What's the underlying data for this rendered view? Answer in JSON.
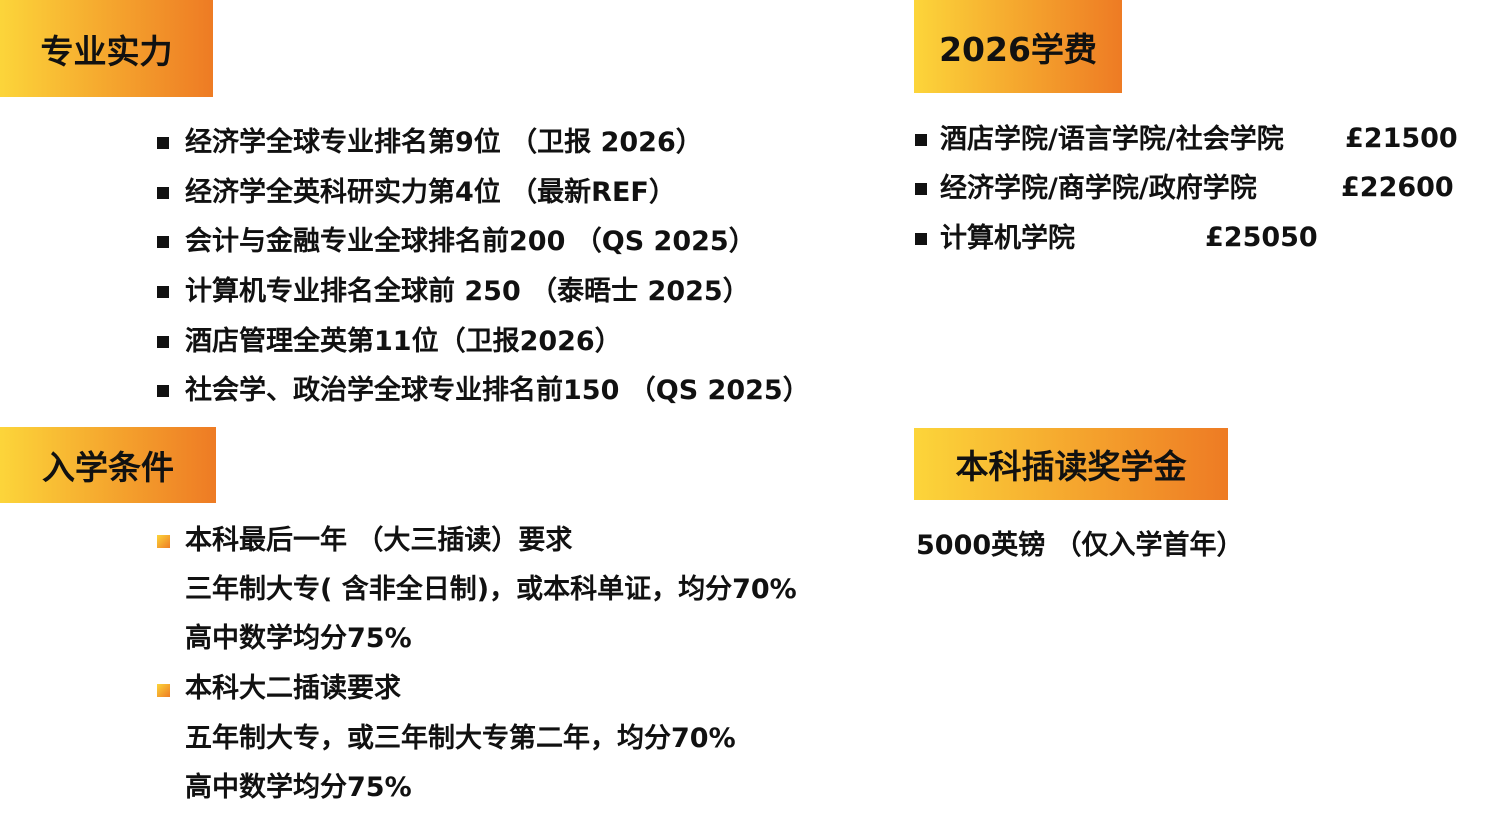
{
  "strength": {
    "title": "专业实力",
    "items": [
      "经济学全球专业排名第9位 （卫报 2026）",
      "经济学全英科研实力第4位 （最新REF）",
      "会计与金融专业全球排名前200 （QS 2025）",
      "计算机专业排名全球前 250 （泰晤士 2025）",
      "酒店管理全英第11位（卫报2026）",
      "社会学、政治学全球专业排名前150 （QS 2025）"
    ]
  },
  "fees": {
    "title": "2026学费",
    "items": [
      {
        "school": "酒店学院/语言学院/社会学院",
        "price": "£21500"
      },
      {
        "school": "经济学院/商学院/政府学院",
        "price": "£22600"
      },
      {
        "school": "计算机学院",
        "price": "£25050"
      }
    ]
  },
  "admission": {
    "title": "入学条件",
    "groups": [
      {
        "heading": "本科最后一年 （大三插读）要求",
        "lines": [
          "三年制大专( 含非全日制)，或本科单证，均分70%",
          "高中数学均分75%"
        ]
      },
      {
        "heading": "本科大二插读要求",
        "lines": [
          "五年制大专，或三年制大专第二年，均分70%",
          "高中数学均分75%"
        ]
      }
    ]
  },
  "scholarship": {
    "title": "本科插读奖学金",
    "text": "5000英镑 （仅入学首年）"
  }
}
